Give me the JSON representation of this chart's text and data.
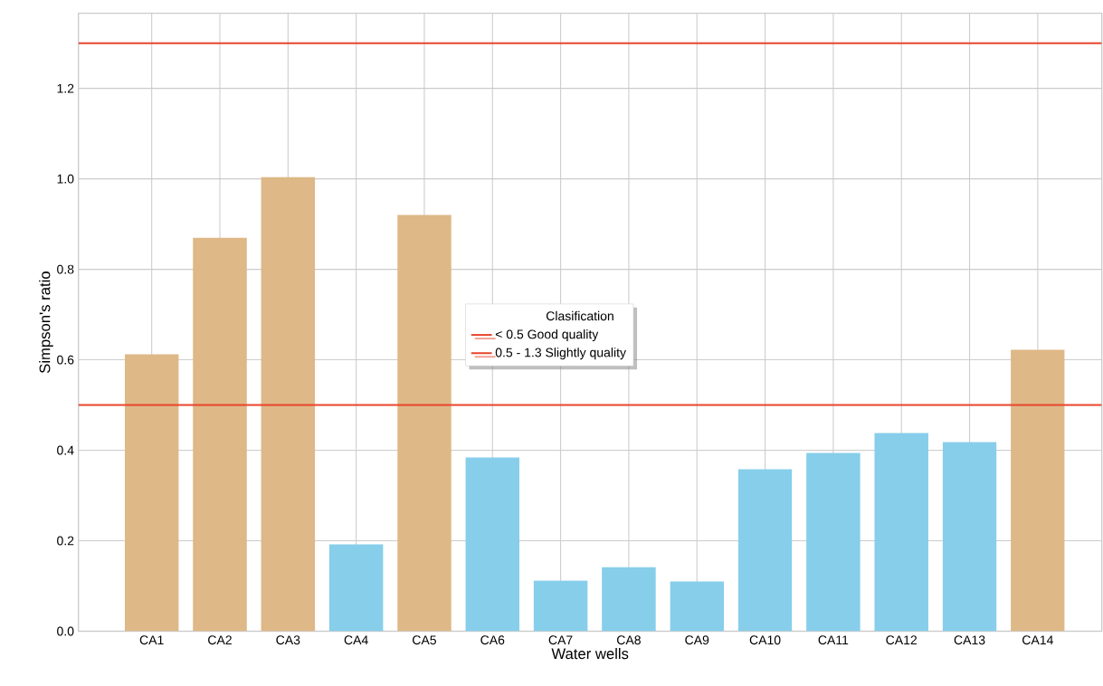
{
  "chart_data": {
    "type": "bar",
    "xlabel": "Water wells",
    "ylabel": "Simpson's ratio",
    "legend_title": "Clasification",
    "categories": [
      "CA1",
      "CA2",
      "CA3",
      "CA4",
      "CA5",
      "CA6",
      "CA7",
      "CA8",
      "CA9",
      "CA10",
      "CA11",
      "CA12",
      "CA13",
      "CA14"
    ],
    "values": [
      0.612,
      0.87,
      1.004,
      0.192,
      0.92,
      0.384,
      0.112,
      0.142,
      0.11,
      0.358,
      0.394,
      0.438,
      0.418,
      0.622
    ],
    "colors": [
      "#deb887",
      "#deb887",
      "#deb887",
      "#87ceeb",
      "#deb887",
      "#87ceeb",
      "#87ceeb",
      "#87ceeb",
      "#87ceeb",
      "#87ceeb",
      "#87ceeb",
      "#87ceeb",
      "#87ceeb",
      "#deb887"
    ],
    "ylim": [
      0,
      1.366
    ],
    "yticks": [
      {
        "value": 0,
        "label": "0.0"
      },
      {
        "value": 0.2,
        "label": "0.2"
      },
      {
        "value": 0.4,
        "label": "0.4"
      },
      {
        "value": 0.6,
        "label": "0.6"
      },
      {
        "value": 0.8,
        "label": "0.8"
      },
      {
        "value": 1.0,
        "label": "1.0"
      },
      {
        "value": 1.2,
        "label": "1.2"
      }
    ],
    "ref_lines": [
      {
        "axis": "y",
        "value": 0.5,
        "label": "< 0.5 Good quality",
        "color": "#e8452c"
      },
      {
        "axis": "y",
        "value": 1.3,
        "label": "0.5 - 1.3 Slightly quality",
        "color": "#e8452c"
      }
    ],
    "grid": true,
    "legend": "center"
  }
}
